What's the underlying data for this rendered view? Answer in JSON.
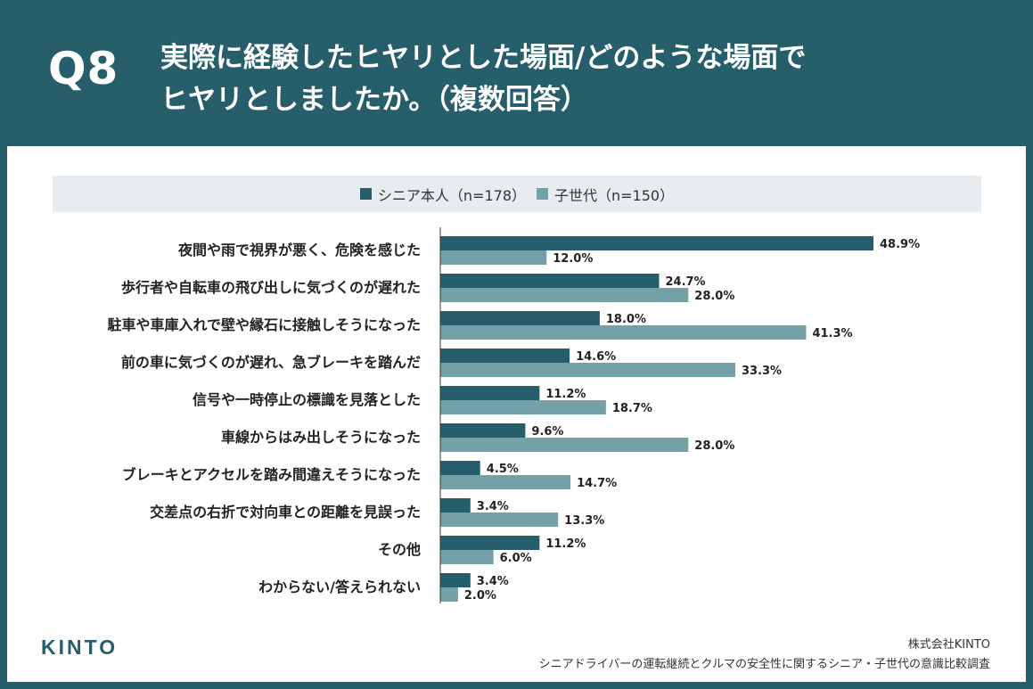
{
  "header": {
    "qnum": "Q8",
    "title_line1": "実際に経験したヒヤリとした場面/どのような場面で",
    "title_line2": "ヒヤリとしましたか。（複数回答）"
  },
  "colors": {
    "frame": "#275e6b",
    "senior": "#275e6b",
    "child": "#74a0a8"
  },
  "chart_data": {
    "type": "bar",
    "orientation": "horizontal",
    "categories": [
      "夜間や雨で視界が悪く、危険を感じた",
      "歩行者や自転車の飛び出しに気づくのが遅れた",
      "駐車や車庫入れで壁や縁石に接触しそうになった",
      "前の車に気づくのが遅れ、急ブレーキを踏んだ",
      "信号や一時停止の標識を見落とした",
      "車線からはみ出しそうになった",
      "ブレーキとアクセルを踏み間違えそうになった",
      "交差点の右折で対向車との距離を見誤った",
      "その他",
      "わからない/答えられない"
    ],
    "series": [
      {
        "name": "シニア本人（n=178）",
        "values": [
          48.9,
          24.7,
          18.0,
          14.6,
          11.2,
          9.6,
          4.5,
          3.4,
          11.2,
          3.4
        ]
      },
      {
        "name": "子世代（n=150）",
        "values": [
          12.0,
          28.0,
          41.3,
          33.3,
          18.7,
          28.0,
          14.7,
          13.3,
          6.0,
          2.0
        ]
      }
    ],
    "value_suffix": "%",
    "legend_position": "top",
    "grid": false
  },
  "footer": {
    "logo": "KINTO",
    "company": "株式会社KINTO",
    "survey": "シニアドライバーの運転継続とクルマの安全性に関するシニア・子世代の意識比較調査"
  }
}
